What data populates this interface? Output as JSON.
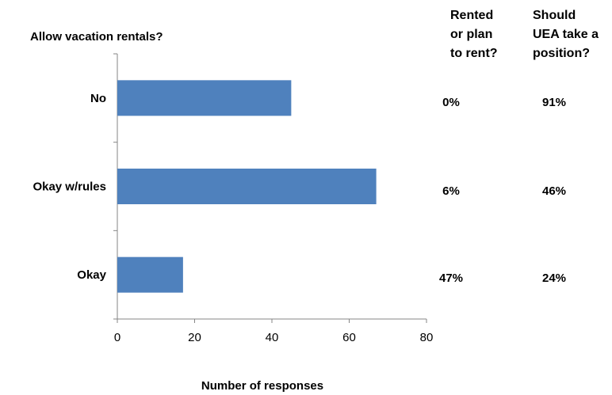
{
  "chart_data": {
    "type": "bar",
    "orientation": "horizontal",
    "title": "Allow vacation rentals?",
    "xlabel": "Number of responses",
    "ylabel": "",
    "categories": [
      "No",
      "Okay w/rules",
      "Okay"
    ],
    "values": [
      45,
      67,
      17
    ],
    "xlim": [
      0,
      80
    ],
    "xticks": [
      "0",
      "20",
      "40",
      "60",
      "80"
    ],
    "bar_color": "#4F81BD",
    "grid": false,
    "legend": "none"
  },
  "table": {
    "columns": [
      {
        "header_lines": [
          "Rented",
          "or plan",
          "to rent?"
        ],
        "values": [
          "0%",
          "6%",
          "47%"
        ]
      },
      {
        "header_lines": [
          "Should",
          "UEA take a",
          "position?"
        ],
        "values": [
          "91%",
          "46%",
          "24%"
        ]
      }
    ]
  }
}
